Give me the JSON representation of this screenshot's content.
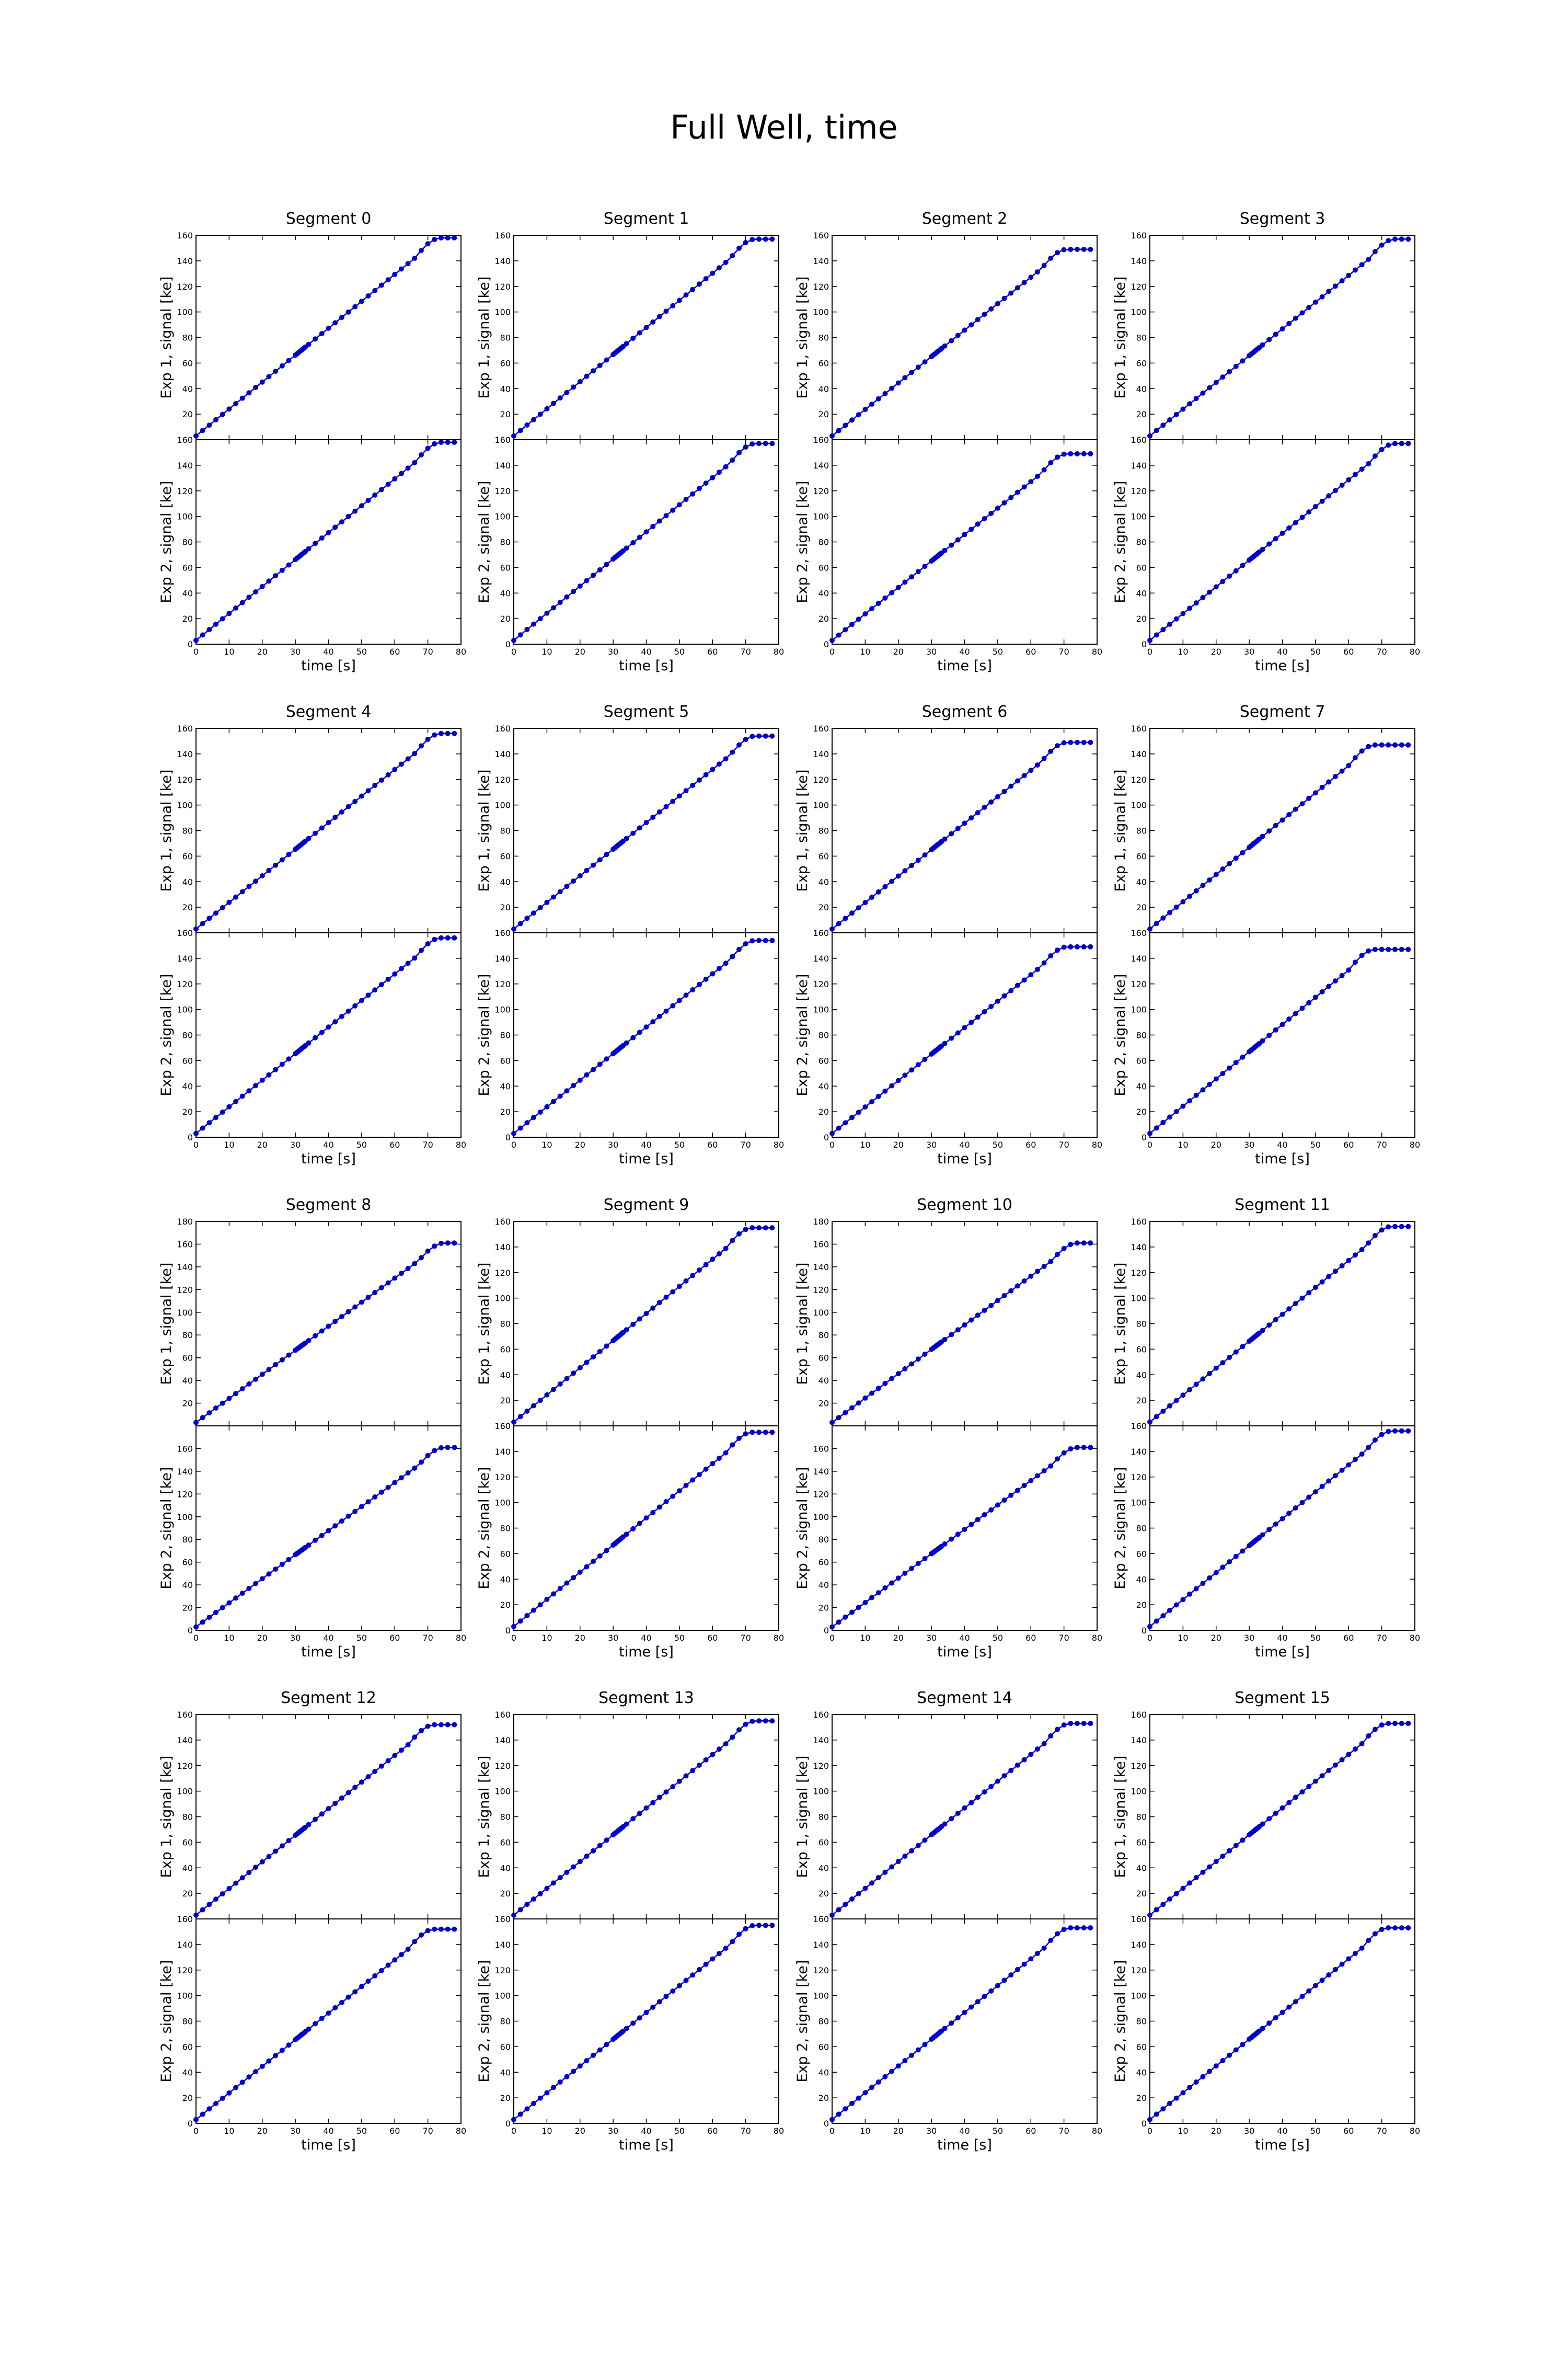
{
  "figure": {
    "title": "Full Well, time",
    "line_color": "#0000cc"
  },
  "chart_data": [
    {
      "type": "line",
      "segment_title": "Segment 0",
      "xlabel": "time [s]",
      "x_ticks": [
        0,
        10,
        20,
        30,
        40,
        50,
        60,
        70,
        80
      ],
      "xlim": [
        0,
        80
      ],
      "panels": [
        {
          "ylabel": "Exp 1, signal [ke]",
          "ylim": [
            0,
            160
          ],
          "y_ticks": [
            20,
            40,
            60,
            80,
            100,
            120,
            140,
            160
          ],
          "saturation": 158,
          "knee": 72
        },
        {
          "ylabel": "Exp 2, signal [ke]",
          "ylim": [
            0,
            160
          ],
          "y_ticks": [
            0,
            20,
            40,
            60,
            80,
            100,
            120,
            140,
            160
          ],
          "saturation": 158,
          "knee": 72
        }
      ]
    },
    {
      "type": "line",
      "segment_title": "Segment 1",
      "xlabel": "time [s]",
      "x_ticks": [
        0,
        10,
        20,
        30,
        40,
        50,
        60,
        70,
        80
      ],
      "xlim": [
        0,
        80
      ],
      "panels": [
        {
          "ylabel": "Exp 1, signal [ke]",
          "ylim": [
            0,
            160
          ],
          "y_ticks": [
            20,
            40,
            60,
            80,
            100,
            120,
            140,
            160
          ],
          "saturation": 157,
          "knee": 71
        },
        {
          "ylabel": "Exp 2, signal [ke]",
          "ylim": [
            0,
            160
          ],
          "y_ticks": [
            0,
            20,
            40,
            60,
            80,
            100,
            120,
            140,
            160
          ],
          "saturation": 157,
          "knee": 71
        }
      ]
    },
    {
      "type": "line",
      "segment_title": "Segment 2",
      "xlabel": "time [s]",
      "x_ticks": [
        0,
        10,
        20,
        30,
        40,
        50,
        60,
        70,
        80
      ],
      "xlim": [
        0,
        80
      ],
      "panels": [
        {
          "ylabel": "Exp 1, signal [ke]",
          "ylim": [
            0,
            160
          ],
          "y_ticks": [
            20,
            40,
            60,
            80,
            100,
            120,
            140,
            160
          ],
          "saturation": 149,
          "knee": 69
        },
        {
          "ylabel": "Exp 2, signal [ke]",
          "ylim": [
            0,
            160
          ],
          "y_ticks": [
            0,
            20,
            40,
            60,
            80,
            100,
            120,
            140,
            160
          ],
          "saturation": 149,
          "knee": 69
        }
      ]
    },
    {
      "type": "line",
      "segment_title": "Segment 3",
      "xlabel": "time [s]",
      "x_ticks": [
        0,
        10,
        20,
        30,
        40,
        50,
        60,
        70,
        80
      ],
      "xlim": [
        0,
        80
      ],
      "panels": [
        {
          "ylabel": "Exp 1, signal [ke]",
          "ylim": [
            0,
            160
          ],
          "y_ticks": [
            20,
            40,
            60,
            80,
            100,
            120,
            140,
            160
          ],
          "saturation": 157,
          "knee": 72
        },
        {
          "ylabel": "Exp 2, signal [ke]",
          "ylim": [
            0,
            160
          ],
          "y_ticks": [
            0,
            20,
            40,
            60,
            80,
            100,
            120,
            140,
            160
          ],
          "saturation": 157,
          "knee": 72
        }
      ]
    },
    {
      "type": "line",
      "segment_title": "Segment 4",
      "xlabel": "time [s]",
      "x_ticks": [
        0,
        10,
        20,
        30,
        40,
        50,
        60,
        70,
        80
      ],
      "xlim": [
        0,
        80
      ],
      "panels": [
        {
          "ylabel": "Exp 1, signal [ke]",
          "ylim": [
            0,
            160
          ],
          "y_ticks": [
            20,
            40,
            60,
            80,
            100,
            120,
            140,
            160
          ],
          "saturation": 156,
          "knee": 72
        },
        {
          "ylabel": "Exp 2, signal [ke]",
          "ylim": [
            0,
            160
          ],
          "y_ticks": [
            0,
            20,
            40,
            60,
            80,
            100,
            120,
            140,
            160
          ],
          "saturation": 156,
          "knee": 72
        }
      ]
    },
    {
      "type": "line",
      "segment_title": "Segment 5",
      "xlabel": "time [s]",
      "x_ticks": [
        0,
        10,
        20,
        30,
        40,
        50,
        60,
        70,
        80
      ],
      "xlim": [
        0,
        80
      ],
      "panels": [
        {
          "ylabel": "Exp 1, signal [ke]",
          "ylim": [
            0,
            160
          ],
          "y_ticks": [
            20,
            40,
            60,
            80,
            100,
            120,
            140,
            160
          ],
          "saturation": 154,
          "knee": 71
        },
        {
          "ylabel": "Exp 2, signal [ke]",
          "ylim": [
            0,
            160
          ],
          "y_ticks": [
            0,
            20,
            40,
            60,
            80,
            100,
            120,
            140,
            160
          ],
          "saturation": 154,
          "knee": 71
        }
      ]
    },
    {
      "type": "line",
      "segment_title": "Segment 6",
      "xlabel": "time [s]",
      "x_ticks": [
        0,
        10,
        20,
        30,
        40,
        50,
        60,
        70,
        80
      ],
      "xlim": [
        0,
        80
      ],
      "panels": [
        {
          "ylabel": "Exp 1, signal [ke]",
          "ylim": [
            0,
            160
          ],
          "y_ticks": [
            20,
            40,
            60,
            80,
            100,
            120,
            140,
            160
          ],
          "saturation": 149,
          "knee": 69
        },
        {
          "ylabel": "Exp 2, signal [ke]",
          "ylim": [
            0,
            160
          ],
          "y_ticks": [
            0,
            20,
            40,
            60,
            80,
            100,
            120,
            140,
            160
          ],
          "saturation": 149,
          "knee": 69
        }
      ]
    },
    {
      "type": "line",
      "segment_title": "Segment 7",
      "xlabel": "time [s]",
      "x_ticks": [
        0,
        10,
        20,
        30,
        40,
        50,
        60,
        70,
        80
      ],
      "xlim": [
        0,
        80
      ],
      "panels": [
        {
          "ylabel": "Exp 1, signal [ke]",
          "ylim": [
            0,
            160
          ],
          "y_ticks": [
            20,
            40,
            60,
            80,
            100,
            120,
            140,
            160
          ],
          "saturation": 147,
          "knee": 66
        },
        {
          "ylabel": "Exp 2, signal [ke]",
          "ylim": [
            0,
            160
          ],
          "y_ticks": [
            0,
            20,
            40,
            60,
            80,
            100,
            120,
            140,
            160
          ],
          "saturation": 147,
          "knee": 66
        }
      ]
    },
    {
      "type": "line",
      "segment_title": "Segment 8",
      "xlabel": "time [s]",
      "x_ticks": [
        0,
        10,
        20,
        30,
        40,
        50,
        60,
        70,
        80
      ],
      "xlim": [
        0,
        80
      ],
      "panels": [
        {
          "ylabel": "Exp 1, signal [ke]",
          "ylim": [
            0,
            180
          ],
          "y_ticks": [
            20,
            40,
            60,
            80,
            100,
            120,
            140,
            160,
            180
          ],
          "saturation": 161,
          "knee": 73
        },
        {
          "ylabel": "Exp 2, signal [ke]",
          "ylim": [
            0,
            180
          ],
          "y_ticks": [
            0,
            20,
            40,
            60,
            80,
            100,
            120,
            140,
            160
          ],
          "saturation": 161,
          "knee": 73
        }
      ]
    },
    {
      "type": "line",
      "segment_title": "Segment 9",
      "xlabel": "time [s]",
      "x_ticks": [
        0,
        10,
        20,
        30,
        40,
        50,
        60,
        70,
        80
      ],
      "xlim": [
        0,
        80
      ],
      "panels": [
        {
          "ylabel": "Exp 1, signal [ke]",
          "ylim": [
            0,
            160
          ],
          "y_ticks": [
            20,
            40,
            60,
            80,
            100,
            120,
            140,
            160
          ],
          "saturation": 155,
          "knee": 70
        },
        {
          "ylabel": "Exp 2, signal [ke]",
          "ylim": [
            0,
            160
          ],
          "y_ticks": [
            0,
            20,
            40,
            60,
            80,
            100,
            120,
            140,
            160
          ],
          "saturation": 155,
          "knee": 70
        }
      ]
    },
    {
      "type": "line",
      "segment_title": "Segment 10",
      "xlabel": "time [s]",
      "x_ticks": [
        0,
        10,
        20,
        30,
        40,
        50,
        60,
        70,
        80
      ],
      "xlim": [
        0,
        80
      ],
      "panels": [
        {
          "ylabel": "Exp 1, signal [ke]",
          "ylim": [
            0,
            180
          ],
          "y_ticks": [
            20,
            40,
            60,
            80,
            100,
            120,
            140,
            160,
            180
          ],
          "saturation": 161,
          "knee": 72
        },
        {
          "ylabel": "Exp 2, signal [ke]",
          "ylim": [
            0,
            180
          ],
          "y_ticks": [
            0,
            20,
            40,
            60,
            80,
            100,
            120,
            140,
            160
          ],
          "saturation": 161,
          "knee": 72
        }
      ]
    },
    {
      "type": "line",
      "segment_title": "Segment 11",
      "xlabel": "time [s]",
      "x_ticks": [
        0,
        10,
        20,
        30,
        40,
        50,
        60,
        70,
        80
      ],
      "xlim": [
        0,
        80
      ],
      "panels": [
        {
          "ylabel": "Exp 1, signal [ke]",
          "ylim": [
            0,
            160
          ],
          "y_ticks": [
            20,
            40,
            60,
            80,
            100,
            120,
            140,
            160
          ],
          "saturation": 156,
          "knee": 71
        },
        {
          "ylabel": "Exp 2, signal [ke]",
          "ylim": [
            0,
            160
          ],
          "y_ticks": [
            0,
            20,
            40,
            60,
            80,
            100,
            120,
            140,
            160
          ],
          "saturation": 156,
          "knee": 71
        }
      ]
    },
    {
      "type": "line",
      "segment_title": "Segment 12",
      "xlabel": "time [s]",
      "x_ticks": [
        0,
        10,
        20,
        30,
        40,
        50,
        60,
        70,
        80
      ],
      "xlim": [
        0,
        80
      ],
      "panels": [
        {
          "ylabel": "Exp 1, signal [ke]",
          "ylim": [
            0,
            160
          ],
          "y_ticks": [
            20,
            40,
            60,
            80,
            100,
            120,
            140,
            160
          ],
          "saturation": 152,
          "knee": 70
        },
        {
          "ylabel": "Exp 2, signal [ke]",
          "ylim": [
            0,
            160
          ],
          "y_ticks": [
            0,
            20,
            40,
            60,
            80,
            100,
            120,
            140,
            160
          ],
          "saturation": 152,
          "knee": 70
        }
      ]
    },
    {
      "type": "line",
      "segment_title": "Segment 13",
      "xlabel": "time [s]",
      "x_ticks": [
        0,
        10,
        20,
        30,
        40,
        50,
        60,
        70,
        80
      ],
      "xlim": [
        0,
        80
      ],
      "panels": [
        {
          "ylabel": "Exp 1, signal [ke]",
          "ylim": [
            0,
            160
          ],
          "y_ticks": [
            20,
            40,
            60,
            80,
            100,
            120,
            140,
            160
          ],
          "saturation": 155,
          "knee": 71
        },
        {
          "ylabel": "Exp 2, signal [ke]",
          "ylim": [
            0,
            160
          ],
          "y_ticks": [
            0,
            20,
            40,
            60,
            80,
            100,
            120,
            140,
            160
          ],
          "saturation": 155,
          "knee": 71
        }
      ]
    },
    {
      "type": "line",
      "segment_title": "Segment 14",
      "xlabel": "time [s]",
      "x_ticks": [
        0,
        10,
        20,
        30,
        40,
        50,
        60,
        70,
        80
      ],
      "xlim": [
        0,
        80
      ],
      "panels": [
        {
          "ylabel": "Exp 1, signal [ke]",
          "ylim": [
            0,
            160
          ],
          "y_ticks": [
            20,
            40,
            60,
            80,
            100,
            120,
            140,
            160
          ],
          "saturation": 153,
          "knee": 70
        },
        {
          "ylabel": "Exp 2, signal [ke]",
          "ylim": [
            0,
            160
          ],
          "y_ticks": [
            0,
            20,
            40,
            60,
            80,
            100,
            120,
            140,
            160
          ],
          "saturation": 153,
          "knee": 70
        }
      ]
    },
    {
      "type": "line",
      "segment_title": "Segment 15",
      "xlabel": "time [s]",
      "x_ticks": [
        0,
        10,
        20,
        30,
        40,
        50,
        60,
        70,
        80
      ],
      "xlim": [
        0,
        80
      ],
      "panels": [
        {
          "ylabel": "Exp 1, signal [ke]",
          "ylim": [
            0,
            160
          ],
          "y_ticks": [
            20,
            40,
            60,
            80,
            100,
            120,
            140,
            160
          ],
          "saturation": 153,
          "knee": 70
        },
        {
          "ylabel": "Exp 2, signal [ke]",
          "ylim": [
            0,
            160
          ],
          "y_ticks": [
            0,
            20,
            40,
            60,
            80,
            100,
            120,
            140,
            160
          ],
          "saturation": 153,
          "knee": 70
        }
      ]
    }
  ]
}
